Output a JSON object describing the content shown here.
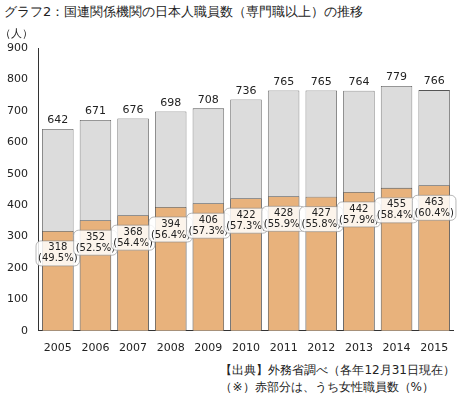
{
  "chart_data": {
    "type": "bar",
    "title": "グラフ2：国連関係機関の日本人職員数（専門職以上）の推移",
    "ylabel": "（人）",
    "annotations": [
      "【出典】外務省調べ（各年12月31日現在）",
      "（※）赤部分は、うち女性職員数（%）"
    ],
    "categories": [
      "2005",
      "2006",
      "2007",
      "2008",
      "2009",
      "2010",
      "2011",
      "2012",
      "2013",
      "2014",
      "2015"
    ],
    "series": [
      {
        "color": "#e8b27c",
        "values": [
          318,
          352,
          368,
          394,
          406,
          422,
          428,
          427,
          442,
          455,
          463
        ],
        "value_labels": [
          "318\n(49.5%)",
          "352\n(52.5%)",
          "368\n(54.4%)",
          "394\n(56.4%)",
          "406\n(57.3%)",
          "422\n(57.3%)",
          "428\n(55.9%)",
          "427\n(55.8%)",
          "442\n(57.9%)",
          "455\n(58.4%)",
          "463\n(60.4%)"
        ]
      },
      {
        "color": "#dcdcdc",
        "values": [
          642,
          671,
          676,
          698,
          708,
          736,
          765,
          765,
          764,
          779,
          766
        ]
      }
    ],
    "ylim": [
      0,
      900
    ],
    "yticks": [
      0,
      100,
      200,
      300,
      400,
      500,
      600,
      700,
      800,
      900
    ],
    "grid": false,
    "data_labels": true
  }
}
